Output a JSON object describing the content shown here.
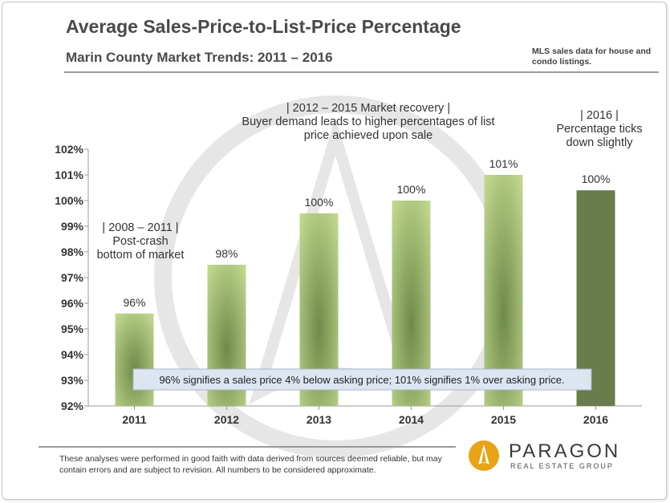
{
  "header": {
    "title": "Average Sales-Price-to-List-Price Percentage",
    "subtitle": "Marin County Market Trends: 2011 – 2016",
    "source_note": "MLS sales data for house and condo listings."
  },
  "chart_data": {
    "type": "bar",
    "categories": [
      "2011",
      "2012",
      "2013",
      "2014",
      "2015",
      "2016"
    ],
    "values": [
      95.6,
      97.5,
      99.5,
      100.0,
      101.0,
      100.4
    ],
    "data_labels": [
      "96%",
      "98%",
      "100%",
      "100%",
      "101%",
      "100%"
    ],
    "ylim": [
      92,
      102
    ],
    "y_ticks": [
      "92%",
      "93%",
      "94%",
      "95%",
      "96%",
      "97%",
      "98%",
      "99%",
      "100%",
      "101%",
      "102%"
    ],
    "xlabel": "",
    "ylabel": "",
    "grid": false,
    "colors": {
      "bar_light": "#c2d98f",
      "bar_center": "#6e8a4a",
      "bar_highlight": "#6b7c4c",
      "axis": "#9a9a9a",
      "watermark": "#e6e6e6"
    },
    "annotations": [
      {
        "lines": [
          "| 2008 – 2011 |",
          "Post-crash",
          "bottom of market"
        ]
      },
      {
        "lines": [
          "|      2012 – 2015 Market recovery     |",
          "Buyer demand leads to higher percentages of list",
          "price achieved upon sale"
        ]
      },
      {
        "lines": [
          "|   2016   |",
          "Percentage ticks",
          "down slightly"
        ]
      }
    ],
    "callout": "96% signifies a sales price 4% below asking price; 101% signifies 1% over asking price."
  },
  "footer": {
    "disclaimer": "These analyses were performed in good faith with data derived from sources deemed reliable, but may contain errors and are subject to revision. All numbers to be considered  approximate.",
    "logo_name": "PARAGON",
    "logo_tagline": "REAL ESTATE GROUP",
    "logo_colors": {
      "outer": "#e8a317",
      "inner": "#ffffff"
    }
  }
}
